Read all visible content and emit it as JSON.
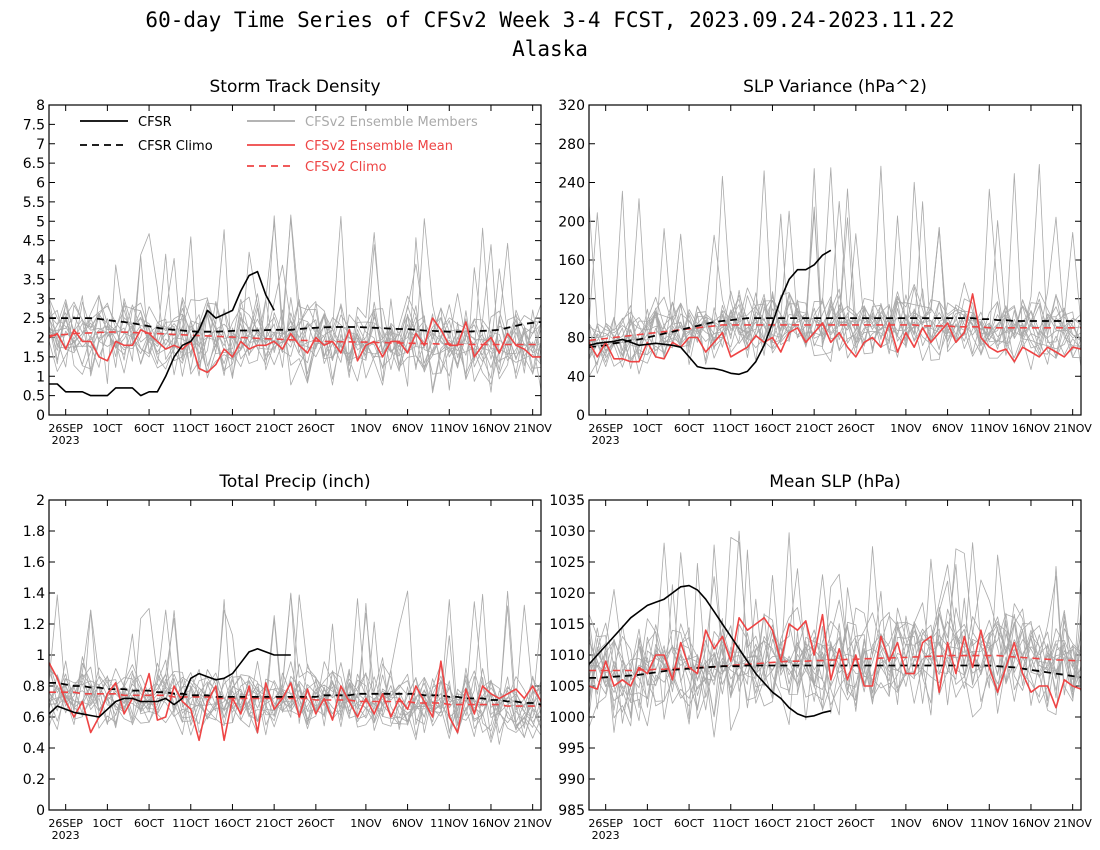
{
  "figure": {
    "title_line1": "60-day Time Series of CFSv2 Week 3-4 FCST, 2023.09.24-2023.11.22",
    "title_line2": "Alaska"
  },
  "x_axis": {
    "ticks": [
      {
        "day": 2,
        "label": "26SEP"
      },
      {
        "day": 7,
        "label": "1OCT"
      },
      {
        "day": 12,
        "label": "6OCT"
      },
      {
        "day": 17,
        "label": "11OCT"
      },
      {
        "day": 22,
        "label": "16OCT"
      },
      {
        "day": 27,
        "label": "21OCT"
      },
      {
        "day": 32,
        "label": "26OCT"
      },
      {
        "day": 38,
        "label": "1NOV"
      },
      {
        "day": 43,
        "label": "6NOV"
      },
      {
        "day": 48,
        "label": "11NOV"
      },
      {
        "day": 53,
        "label": "16NOV"
      },
      {
        "day": 58,
        "label": "21NOV"
      }
    ],
    "year_label": "2023",
    "xlim": [
      0,
      59
    ]
  },
  "legend": {
    "entries": [
      {
        "label": "CFSR",
        "color": "#000000",
        "dash": false
      },
      {
        "label": "CFSR Climo",
        "color": "#000000",
        "dash": true
      },
      {
        "label": "CFSv2 Ensemble Members",
        "color": "#aaaaaa",
        "dash": false
      },
      {
        "label": "CFSv2 Ensemble Mean",
        "color": "#ee4444",
        "dash": false
      },
      {
        "label": "CFSv2 Climo",
        "color": "#ee4444",
        "dash": true
      }
    ]
  },
  "colors": {
    "cfsr": "#000000",
    "members": "#aaaaaa",
    "mean": "#ee4444",
    "cfsv2_climo": "#ee4444"
  },
  "chart_data": [
    {
      "type": "line",
      "title": "Storm Track Density",
      "ylim": [
        0,
        8
      ],
      "yticks": [
        0,
        0.5,
        1,
        1.5,
        2,
        2.5,
        3,
        3.5,
        4,
        4.5,
        5,
        5.5,
        6,
        6.5,
        7,
        7.5,
        8
      ],
      "ytick_labels": [
        "0",
        "0.5",
        "1",
        "1.5",
        "2",
        "2.5",
        "3",
        "3.5",
        "4",
        "4.5",
        "5",
        "5.5",
        "6",
        "6.5",
        "7",
        "7.5",
        "8"
      ],
      "cfsr": [
        0.8,
        0.8,
        0.6,
        0.6,
        0.6,
        0.5,
        0.5,
        0.5,
        0.7,
        0.7,
        0.7,
        0.5,
        0.6,
        0.6,
        1.0,
        1.5,
        1.8,
        1.9,
        2.2,
        2.7,
        2.5,
        2.6,
        2.7,
        3.2,
        3.6,
        3.7,
        3.1,
        2.7
      ],
      "cfsr_climo": [
        2.5,
        2.5,
        2.5,
        2.5,
        2.5,
        2.5,
        2.48,
        2.45,
        2.42,
        2.4,
        2.37,
        2.33,
        2.29,
        2.25,
        2.22,
        2.2,
        2.18,
        2.16,
        2.15,
        2.15,
        2.15,
        2.16,
        2.17,
        2.18,
        2.18,
        2.18,
        2.19,
        2.2,
        2.2,
        2.2,
        2.22,
        2.24,
        2.25,
        2.26,
        2.27,
        2.27,
        2.27,
        2.27,
        2.26,
        2.25,
        2.24,
        2.23,
        2.22,
        2.22,
        2.2,
        2.18,
        2.17,
        2.16,
        2.15,
        2.15,
        2.15,
        2.16,
        2.17,
        2.18,
        2.2,
        2.25,
        2.3,
        2.35,
        2.38,
        2.4
      ],
      "mean": [
        2.0,
        2.1,
        1.7,
        2.2,
        1.9,
        1.9,
        1.5,
        1.4,
        1.9,
        1.8,
        1.8,
        2.2,
        2.1,
        1.9,
        1.7,
        1.8,
        1.7,
        1.9,
        1.2,
        1.1,
        1.3,
        1.7,
        1.5,
        1.9,
        1.7,
        1.8,
        1.8,
        1.9,
        1.7,
        2.1,
        1.8,
        1.6,
        2.0,
        1.8,
        1.9,
        1.6,
        2.2,
        1.4,
        1.8,
        1.9,
        1.5,
        1.9,
        1.9,
        1.6,
        2.1,
        1.8,
        2.5,
        2.2,
        1.8,
        1.8,
        2.4,
        1.5,
        1.8,
        2.0,
        1.6,
        2.1,
        1.8,
        1.7,
        1.5,
        1.5
      ],
      "cfsv2_climo": [
        2.05,
        2.06,
        2.08,
        2.1,
        2.11,
        2.12,
        2.13,
        2.14,
        2.14,
        2.14,
        2.13,
        2.12,
        2.11,
        2.1,
        2.09,
        2.08,
        2.07,
        2.06,
        2.05,
        2.04,
        2.03,
        2.02,
        2.01,
        2.0,
        1.99,
        1.98,
        1.97,
        1.96,
        1.95,
        1.94,
        1.93,
        1.92,
        1.91,
        1.9,
        1.9,
        1.89,
        1.89,
        1.88,
        1.88,
        1.87,
        1.87,
        1.86,
        1.86,
        1.85,
        1.85,
        1.84,
        1.84,
        1.83,
        1.83,
        1.82,
        1.82,
        1.82,
        1.82,
        1.82,
        1.82,
        1.82,
        1.82,
        1.82,
        1.82,
        1.82
      ],
      "members": {
        "count": 16,
        "center": 1.8,
        "spread": 0.85,
        "peak_max": 5.2
      }
    },
    {
      "type": "line",
      "title": "SLP Variance (hPa^2)",
      "ylim": [
        0,
        320
      ],
      "yticks": [
        0,
        40,
        80,
        120,
        160,
        200,
        240,
        280,
        320
      ],
      "ytick_labels": [
        "0",
        "40",
        "80",
        "120",
        "160",
        "200",
        "240",
        "280",
        "320"
      ],
      "cfsr": [
        72,
        74,
        75,
        76,
        78,
        75,
        72,
        73,
        74,
        73,
        72,
        70,
        60,
        50,
        48,
        48,
        46,
        43,
        42,
        45,
        55,
        72,
        95,
        120,
        140,
        150,
        150,
        155,
        165,
        170
      ],
      "cfsr_climo": [
        70,
        71,
        72,
        74,
        75,
        77,
        78,
        80,
        82,
        84,
        86,
        88,
        90,
        92,
        94,
        96,
        97,
        98,
        99,
        100,
        100,
        100,
        100,
        100,
        100,
        100,
        100,
        100,
        100,
        100,
        100,
        100,
        100,
        100,
        100,
        100,
        100,
        100,
        100,
        100,
        100,
        100,
        100,
        100,
        100,
        100,
        100,
        99,
        99,
        98,
        98,
        97,
        97,
        97,
        97,
        97,
        97,
        97,
        97,
        97
      ],
      "mean": [
        75,
        60,
        75,
        58,
        58,
        55,
        55,
        75,
        60,
        58,
        75,
        70,
        80,
        80,
        65,
        75,
        85,
        60,
        65,
        70,
        82,
        75,
        80,
        65,
        85,
        90,
        75,
        85,
        95,
        75,
        85,
        70,
        60,
        75,
        80,
        70,
        95,
        65,
        85,
        70,
        90,
        75,
        85,
        95,
        75,
        85,
        125,
        80,
        70,
        65,
        68,
        55,
        70,
        65,
        60,
        70,
        65,
        60,
        70,
        68
      ],
      "cfsv2_climo": [
        77,
        78,
        79,
        80,
        81,
        82,
        83,
        84,
        85,
        86,
        87,
        88,
        89,
        90,
        91,
        92,
        93,
        93,
        93,
        93,
        93,
        93,
        93,
        93,
        93,
        93,
        93,
        93,
        93,
        93,
        93,
        93,
        93,
        93,
        93,
        93,
        93,
        93,
        93,
        93,
        92,
        92,
        92,
        92,
        91,
        91,
        91,
        91,
        90,
        90,
        90,
        90,
        90,
        90,
        90,
        90,
        90,
        90,
        90,
        90
      ],
      "members": {
        "count": 16,
        "center": 72,
        "spread": 28,
        "peak_max": 262
      }
    },
    {
      "type": "line",
      "title": "Total Precip (inch)",
      "ylim": [
        0,
        2
      ],
      "yticks": [
        0,
        0.2,
        0.4,
        0.6,
        0.8,
        1,
        1.2,
        1.4,
        1.6,
        1.8,
        2
      ],
      "ytick_labels": [
        "0",
        "0.2",
        "0.4",
        "0.6",
        "0.8",
        "1",
        "1.2",
        "1.4",
        "1.6",
        "1.8",
        "2"
      ],
      "cfsr": [
        0.62,
        0.67,
        0.65,
        0.63,
        0.62,
        0.61,
        0.6,
        0.65,
        0.7,
        0.72,
        0.72,
        0.7,
        0.7,
        0.7,
        0.72,
        0.68,
        0.72,
        0.85,
        0.88,
        0.86,
        0.84,
        0.85,
        0.88,
        0.95,
        1.02,
        1.04,
        1.02,
        1.0,
        1.0,
        1.0
      ],
      "cfsr_climo": [
        0.82,
        0.82,
        0.81,
        0.8,
        0.8,
        0.79,
        0.79,
        0.78,
        0.78,
        0.78,
        0.77,
        0.77,
        0.77,
        0.76,
        0.76,
        0.75,
        0.75,
        0.74,
        0.74,
        0.74,
        0.73,
        0.73,
        0.73,
        0.73,
        0.73,
        0.73,
        0.73,
        0.73,
        0.73,
        0.73,
        0.73,
        0.73,
        0.73,
        0.74,
        0.74,
        0.74,
        0.74,
        0.75,
        0.75,
        0.75,
        0.75,
        0.75,
        0.75,
        0.75,
        0.75,
        0.74,
        0.74,
        0.74,
        0.73,
        0.73,
        0.72,
        0.72,
        0.72,
        0.71,
        0.71,
        0.7,
        0.7,
        0.69,
        0.69,
        0.68
      ],
      "mean": [
        0.95,
        0.85,
        0.7,
        0.6,
        0.7,
        0.5,
        0.6,
        0.75,
        0.82,
        0.62,
        0.72,
        0.7,
        0.88,
        0.58,
        0.6,
        0.8,
        0.7,
        0.65,
        0.45,
        0.7,
        0.8,
        0.45,
        0.72,
        0.62,
        0.8,
        0.5,
        0.82,
        0.65,
        0.72,
        0.82,
        0.6,
        0.78,
        0.62,
        0.72,
        0.58,
        0.8,
        0.7,
        0.6,
        0.72,
        0.62,
        0.75,
        0.6,
        0.72,
        0.65,
        0.8,
        0.7,
        0.6,
        0.96,
        0.6,
        0.5,
        0.78,
        0.62,
        0.8,
        0.75,
        0.72,
        0.75,
        0.78,
        0.72,
        0.8,
        0.7
      ],
      "cfsv2_climo": [
        0.76,
        0.76,
        0.76,
        0.76,
        0.75,
        0.75,
        0.75,
        0.75,
        0.75,
        0.74,
        0.74,
        0.74,
        0.74,
        0.74,
        0.74,
        0.73,
        0.73,
        0.73,
        0.73,
        0.73,
        0.72,
        0.72,
        0.72,
        0.72,
        0.72,
        0.72,
        0.72,
        0.72,
        0.72,
        0.72,
        0.72,
        0.72,
        0.71,
        0.71,
        0.71,
        0.71,
        0.71,
        0.7,
        0.7,
        0.7,
        0.7,
        0.7,
        0.7,
        0.7,
        0.69,
        0.69,
        0.69,
        0.69,
        0.68,
        0.68,
        0.68,
        0.68,
        0.68,
        0.68,
        0.68,
        0.67,
        0.67,
        0.67,
        0.67,
        0.67
      ],
      "members": {
        "count": 16,
        "center": 0.68,
        "spread": 0.18,
        "peak_max": 1.42
      }
    },
    {
      "type": "line",
      "title": "Mean SLP (hPa)",
      "ylim": [
        985,
        1035
      ],
      "yticks": [
        985,
        990,
        995,
        1000,
        1005,
        1010,
        1015,
        1020,
        1025,
        1030,
        1035
      ],
      "ytick_labels": [
        "985",
        "990",
        "995",
        "1000",
        "1005",
        "1010",
        "1015",
        "1020",
        "1025",
        "1030",
        "1035"
      ],
      "cfsr": [
        1008.5,
        1010,
        1011.5,
        1013,
        1014.5,
        1016,
        1017,
        1018,
        1018.5,
        1019,
        1020,
        1021,
        1021.2,
        1020.5,
        1019,
        1017,
        1015,
        1013,
        1011,
        1009,
        1007,
        1005.5,
        1004,
        1003,
        1001.5,
        1000.5,
        1000,
        1000.2,
        1000.7,
        1001
      ],
      "cfsr_climo": [
        1006.3,
        1006.3,
        1006.4,
        1006.5,
        1006.6,
        1006.7,
        1006.8,
        1007,
        1007.2,
        1007.4,
        1007.6,
        1007.7,
        1007.8,
        1007.9,
        1008,
        1008.1,
        1008.2,
        1008.2,
        1008.2,
        1008.3,
        1008.3,
        1008.3,
        1008.3,
        1008.3,
        1008.3,
        1008.3,
        1008.3,
        1008.3,
        1008.3,
        1008.3,
        1008.3,
        1008.3,
        1008.3,
        1008.3,
        1008.3,
        1008.3,
        1008.3,
        1008.3,
        1008.3,
        1008.3,
        1008.3,
        1008.3,
        1008.3,
        1008.3,
        1008.3,
        1008.3,
        1008.3,
        1008.3,
        1008.3,
        1008.2,
        1008.1,
        1008,
        1007.8,
        1007.6,
        1007.4,
        1007.2,
        1007,
        1006.8,
        1006.6,
        1006.4
      ],
      "mean": [
        1005,
        1004.5,
        1009,
        1005,
        1006,
        1005,
        1008,
        1007,
        1010,
        1010,
        1006,
        1012,
        1008,
        1007,
        1014,
        1011,
        1013,
        1009,
        1016,
        1014,
        1015,
        1016,
        1014,
        1009,
        1015,
        1014,
        1015.5,
        1010,
        1016.5,
        1006,
        1011,
        1006,
        1010,
        1005,
        1005,
        1013,
        1009,
        1012,
        1007,
        1007,
        1012,
        1013,
        1004,
        1012,
        1007,
        1013,
        1008,
        1014,
        1008,
        1004,
        1008,
        1012,
        1007,
        1004,
        1005,
        1005,
        1001.5,
        1006,
        1005,
        1004.5
      ],
      "cfsv2_climo": [
        1007.5,
        1007.5,
        1007.5,
        1007.5,
        1007.5,
        1007.5,
        1007.6,
        1007.6,
        1007.7,
        1007.7,
        1007.8,
        1007.8,
        1007.9,
        1008,
        1008,
        1008.1,
        1008.2,
        1008.3,
        1008.4,
        1008.5,
        1008.6,
        1008.7,
        1008.8,
        1008.9,
        1009,
        1009,
        1009,
        1009.1,
        1009.1,
        1009.2,
        1009.2,
        1009.3,
        1009.3,
        1009.4,
        1009.4,
        1009.5,
        1009.5,
        1009.6,
        1009.6,
        1009.7,
        1009.7,
        1009.8,
        1009.8,
        1009.9,
        1009.9,
        1009.9,
        1009.9,
        1009.9,
        1009.9,
        1009.9,
        1009.8,
        1009.7,
        1009.6,
        1009.5,
        1009.4,
        1009.3,
        1009.2,
        1009.2,
        1009.1,
        1009.1
      ],
      "members": {
        "count": 16,
        "center": 1007.5,
        "spread": 7,
        "peak_max": 1030
      }
    }
  ]
}
